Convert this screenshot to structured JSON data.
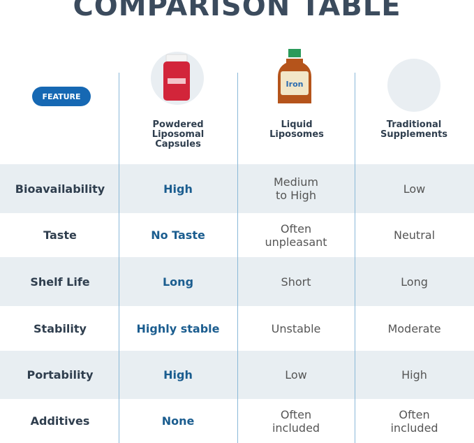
{
  "title": "COMPARISON TABLE",
  "table": {
    "header": {
      "feature": "FEATURE",
      "columns": [
        "Powdered\nLiposomal\nCapsules",
        "Liquid\nLiposomes",
        "Traditional\nSupplements"
      ]
    },
    "rows": [
      [
        "Bioavailability",
        "High",
        "Medium\nto High",
        "Low"
      ],
      [
        "Taste",
        "No Taste",
        "Often\nunpleasant",
        "Neutral"
      ],
      [
        "Shelf Life",
        "Long",
        "Short",
        "Long"
      ],
      [
        "Stability",
        "Highly stable",
        "Unstable",
        "Moderate"
      ],
      [
        "Portability",
        "High",
        "Low",
        "High"
      ],
      [
        "Additives",
        "None",
        "Often\nincluded",
        "Often\nincluded"
      ]
    ]
  }
}
